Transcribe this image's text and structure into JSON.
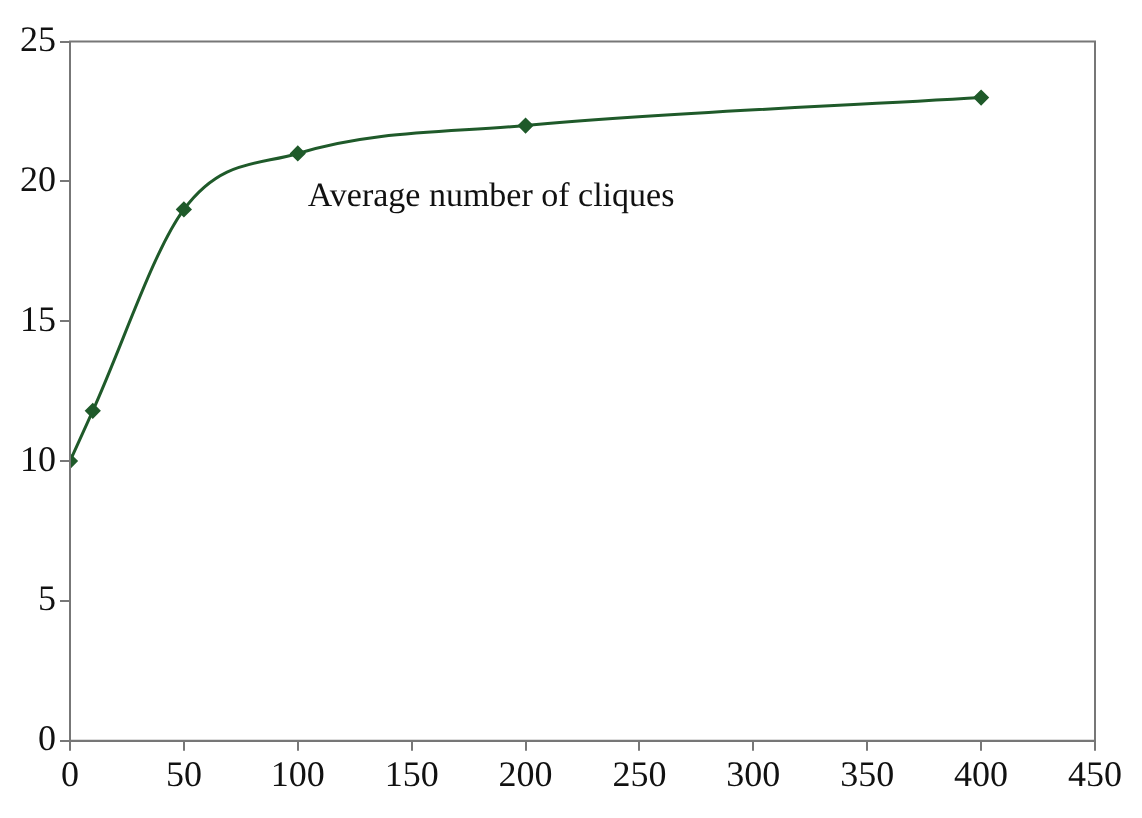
{
  "chart_data": {
    "type": "line",
    "x": [
      0,
      10,
      50,
      100,
      200,
      400
    ],
    "series": [
      {
        "name": "Average number of cliques",
        "color": "#1f5a2a",
        "values": [
          10,
          11.8,
          19,
          21,
          22,
          23
        ]
      }
    ],
    "xlim": [
      0,
      450
    ],
    "xticks": [
      0,
      50,
      100,
      150,
      200,
      250,
      300,
      350,
      400,
      450
    ],
    "ylim": [
      0,
      25
    ],
    "yticks": [
      0,
      5,
      10,
      15,
      20,
      25
    ],
    "grid": false,
    "legend": false,
    "marker": "diamond",
    "line_style": "solid"
  }
}
